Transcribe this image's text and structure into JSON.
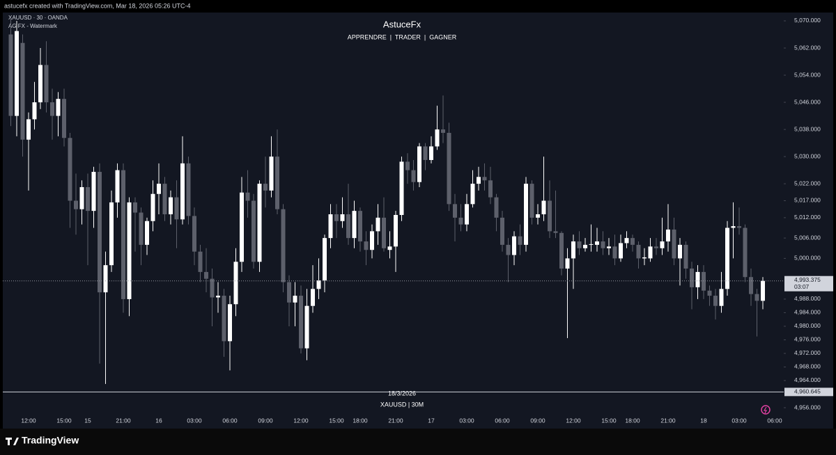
{
  "header": {
    "credit": "astucefx created with TradingView.com, Mar 18, 2026 05:26 UTC-4",
    "symbol": "XAUUSD · 30 · OANDA",
    "indicator": "AG FX - Watermark",
    "brand": "TradingView"
  },
  "chart_data": {
    "type": "candlestick",
    "title": "AstuceFx",
    "subtitle": "APPRENDRE  |  TRADER  |  GAGNER",
    "watermark": {
      "date": "18/3/2026",
      "symbol": "XAUUSD | 30M"
    },
    "categories": [
      null,
      null,
      null,
      "12:00",
      null,
      null,
      null,
      null,
      null,
      "15:00",
      null,
      null,
      null,
      "15",
      null,
      null,
      null,
      null,
      null,
      "21:00",
      null,
      null,
      null,
      null,
      null,
      "16",
      null,
      null,
      null,
      null,
      null,
      "03:00",
      null,
      null,
      null,
      null,
      null,
      "06:00",
      null,
      null,
      null,
      null,
      null,
      "09:00",
      null,
      null,
      null,
      null,
      null,
      "12:00",
      null,
      null,
      null,
      null,
      null,
      "15:00",
      null,
      null,
      null,
      "18:00",
      null,
      null,
      null,
      null,
      null,
      "21:00",
      null,
      null,
      null,
      null,
      null,
      "17",
      null,
      null,
      null,
      null,
      null,
      "03:00",
      null,
      null,
      null,
      null,
      null,
      "06:00",
      null,
      null,
      null,
      null,
      null,
      "09:00",
      null,
      null,
      null,
      null,
      null,
      "12:00",
      null,
      null,
      null,
      null,
      null,
      "15:00",
      null,
      null,
      null,
      "18:00",
      null,
      null,
      null,
      null,
      null,
      "21:00",
      null,
      null,
      null,
      null,
      null,
      "18",
      null,
      null,
      null,
      null,
      null,
      "03:00",
      null,
      null,
      null,
      null,
      null,
      "06:00"
    ],
    "open": [
      5066,
      5042,
      5063.5,
      5035,
      5041,
      5046,
      5057,
      5046,
      5042,
      5047,
      5035.5,
      5017,
      5014.5,
      5021,
      5014,
      5025.5,
      4990,
      4998,
      5016.5,
      5026,
      4988,
      5016.5,
      5013.5,
      5004,
      5011,
      5019,
      5022,
      5013,
      5018,
      5011.5,
      5028,
      5012.5,
      5002,
      4996,
      4994,
      4988.5,
      4989,
      4975.6,
      4986.5,
      4999,
      5019.4,
      5017,
      4999,
      5022,
      5020,
      5030,
      5014.5,
      4993,
      4987,
      4989,
      4973.5,
      4986,
      4991,
      4993.5,
      5006,
      5013,
      5011,
      5013,
      5006,
      5014,
      5005,
      5002.5,
      5008,
      5012,
      5002.5,
      5003.5,
      5012.8,
      5028.5,
      5026,
      5022.5,
      5033,
      5029,
      5033,
      5038,
      5037,
      5016,
      5012,
      5010,
      5016,
      5022,
      5024,
      5023,
      5018,
      5012,
      5004,
      5001,
      5006.5,
      5004,
      5022,
      5012,
      5013,
      5017,
      5008,
      5007.5,
      4997,
      5000,
      5005,
      5003,
      5004,
      5004,
      5005,
      5003,
      5003.5,
      5000,
      5004.5,
      5006,
      5004,
      5000,
      5000,
      5003.5,
      5003,
      5005,
      5008.5,
      5000,
      5004,
      4997,
      4991.5,
      4996,
      4990.5,
      4989,
      4986,
      4991,
      5009,
      5009.5,
      5009,
      4994.5,
      4989.5,
      4987.5,
      null,
      null
    ],
    "high": [
      5071,
      5070,
      5066,
      5043,
      5052,
      5062,
      5064,
      5050,
      5049,
      5050,
      5037,
      5025,
      5023,
      5025,
      5027,
      5028,
      5002,
      5020,
      5028,
      5028,
      5018,
      5018,
      5015,
      5012,
      5023,
      5028,
      5024,
      5020,
      5023,
      5036,
      5030,
      5015,
      5004,
      5003,
      4997,
      4993,
      4991,
      4989,
      5003,
      5024,
      5026,
      5019,
      5023,
      5030,
      5036,
      5038,
      5016,
      4995,
      4993,
      4992,
      4991,
      4998,
      5000,
      5007,
      5016,
      5016,
      5018,
      5022,
      5017,
      5015,
      5008,
      5010,
      5016,
      5018,
      5008,
      5014,
      5030,
      5031,
      5029,
      5034,
      5034,
      5036,
      5045,
      5048,
      5040,
      5019,
      5016,
      5019,
      5026,
      5027,
      5028,
      5027,
      5019,
      5014,
      5006,
      5008,
      5010,
      5024,
      5023,
      5016,
      5030,
      5023,
      5020,
      5008,
      5003,
      5007,
      5008,
      5006,
      5010,
      5009,
      5008,
      5006,
      5007,
      5007,
      5008,
      5007,
      5005,
      5003,
      5006,
      5006,
      5012,
      5016,
      5012,
      5006,
      5005,
      4999,
      4998,
      4998,
      4992,
      4991,
      4996,
      5011,
      5016.5,
      5015,
      5010,
      4997,
      4991,
      4994.5,
      null,
      null
    ],
    "low": [
      5039,
      5036,
      5030,
      5020,
      5038,
      5044,
      5043,
      5035,
      5036,
      5033,
      5009,
      5007,
      5010,
      4998,
      5009,
      4969,
      4963,
      4996,
      5012,
      4984,
      4983,
      5002,
      4998,
      5001,
      5008,
      5013,
      5011,
      5010,
      5003,
      5010,
      5010,
      4998,
      4993,
      4990,
      4980,
      4984,
      4971,
      4967,
      4983,
      4996,
      5012,
      4997,
      4996,
      5015,
      5018,
      5013,
      4990,
      4980,
      4980,
      4972,
      4970,
      4984,
      4988,
      4990,
      5003,
      5006,
      5009,
      5004,
      5003,
      5002,
      4998,
      5000,
      5004,
      5002,
      5000,
      4996,
      5011,
      5022,
      5020,
      5021,
      5026,
      5028,
      5032,
      5034,
      5014,
      5005,
      5008,
      5008,
      5015,
      5020,
      5020,
      5016,
      5008,
      5002,
      4993,
      4998,
      5001,
      5002,
      5010,
      5010,
      5011,
      5006,
      5006,
      4995,
      4976.5,
      4991,
      5001,
      5002,
      5002,
      5002,
      5001,
      5001,
      4998,
      4999,
      5003,
      5002,
      4997,
      4998,
      4999,
      5001,
      5001,
      5002,
      4998,
      4992,
      4994,
      4985,
      4988,
      4988,
      4986,
      4982,
      4984,
      4989,
      5000,
      5007,
      4993,
      4986,
      4977,
      4985,
      null,
      null
    ],
    "close": [
      5042,
      5067,
      5035,
      5041,
      5046,
      5057,
      5046,
      5042,
      5047,
      5035.5,
      5017,
      5014.5,
      5021,
      5014,
      5025.5,
      4990,
      4998,
      5016.5,
      5026,
      4988,
      5016.5,
      5013.5,
      5004,
      5011,
      5019,
      5022,
      5013,
      5018,
      5011.5,
      5028,
      5012.5,
      5002,
      4996,
      4994,
      4988.5,
      4989,
      4975.6,
      4986.5,
      4999,
      5019.4,
      5017,
      4999,
      5022,
      5020,
      5030,
      5014.5,
      4993,
      4987,
      4989,
      4973.5,
      4986,
      4991,
      4993.5,
      5006,
      5013,
      5011,
      5013,
      5006,
      5014,
      5005,
      5002.5,
      5008,
      5012,
      5003,
      5003.5,
      5012.8,
      5028.5,
      5026,
      5022.5,
      5033,
      5029,
      5033,
      5038,
      5037,
      5016,
      5012,
      5010,
      5016,
      5022,
      5024,
      5023,
      5018,
      5012,
      5004,
      5001,
      5006.5,
      5004,
      5022,
      5012,
      5013,
      5017,
      5008,
      5007.5,
      4997,
      5000,
      5005,
      5003,
      5004,
      5004.2,
      5005,
      5003,
      5003.5,
      5000,
      5004.5,
      5006,
      5004,
      5000,
      5000.3,
      5003.5,
      5003,
      5005,
      5008.5,
      5000,
      5004,
      4997,
      4991.5,
      4996,
      4990.5,
      4989,
      4986,
      4991,
      5009,
      5009.5,
      5009,
      4994.5,
      4989.5,
      4987.5,
      4993.375,
      null,
      null
    ],
    "up_color": "#ffffff",
    "down_color": "#5d606b",
    "ylim": [
      4953.95,
      5072.46
    ],
    "yticks": [
      {
        "value": 5070,
        "label": "5,070.000"
      },
      {
        "value": 5062,
        "label": "5,062.000"
      },
      {
        "value": 5054,
        "label": "5,054.000"
      },
      {
        "value": 5046,
        "label": "5,046.000"
      },
      {
        "value": 5038,
        "label": "5,038.000"
      },
      {
        "value": 5030,
        "label": "5,030.000"
      },
      {
        "value": 5022,
        "label": "5,022.000"
      },
      {
        "value": 5017,
        "label": "5,017.000"
      },
      {
        "value": 5012,
        "label": "5,012.000"
      },
      {
        "value": 5006,
        "label": "5,006.000"
      },
      {
        "value": 5000,
        "label": "5,000.000"
      },
      {
        "value": 4988,
        "label": "4,988.000"
      },
      {
        "value": 4984,
        "label": "4,984.000"
      },
      {
        "value": 4980,
        "label": "4,980.000"
      },
      {
        "value": 4976,
        "label": "4,976.000"
      },
      {
        "value": 4972,
        "label": "4,972.000"
      },
      {
        "value": 4968,
        "label": "4,968.000"
      },
      {
        "value": 4964,
        "label": "4,964.000"
      },
      {
        "value": 4956,
        "label": "4,956.000"
      }
    ],
    "grid": false,
    "last_price": {
      "value": 4993.375,
      "label": "4,993.375",
      "countdown": "03:07"
    },
    "hline": {
      "value": 4960.645,
      "label": "4,960.645"
    }
  }
}
